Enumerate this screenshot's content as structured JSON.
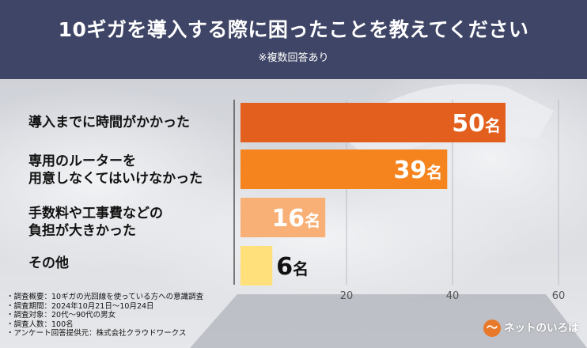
{
  "header": {
    "title": "10ギガを導入する際に困ったことを教えてください",
    "subtitle": "※複数回答あり"
  },
  "chart_data": {
    "type": "bar",
    "orientation": "horizontal",
    "categories": [
      "導入までに時間がかかった",
      "専用のルーターを\n用意しなくてはいけなかった",
      "手数料や工事費などの\n負担が大きかった",
      "その他"
    ],
    "values": [
      50,
      39,
      16,
      6
    ],
    "value_labels": [
      "50名",
      "39名",
      "16名",
      "6名"
    ],
    "colors": [
      "#e35f1e",
      "#f5841f",
      "#f9b076",
      "#ffe07a"
    ],
    "xlim": [
      0,
      60
    ],
    "xticks": [
      20,
      40,
      60
    ],
    "grid": true
  },
  "notes": [
    "・調査概要：10ギガの光回線を使っている方への意識調査",
    "・調査期間：2024年10月21日～10月24日",
    "・調査対象：20代～90代の男女",
    "・調査人数：100名",
    "・アンケート回答提供元：株式会社クラウドワークス"
  ],
  "logo": {
    "mark": "〜",
    "text": "ネットのいろは"
  }
}
